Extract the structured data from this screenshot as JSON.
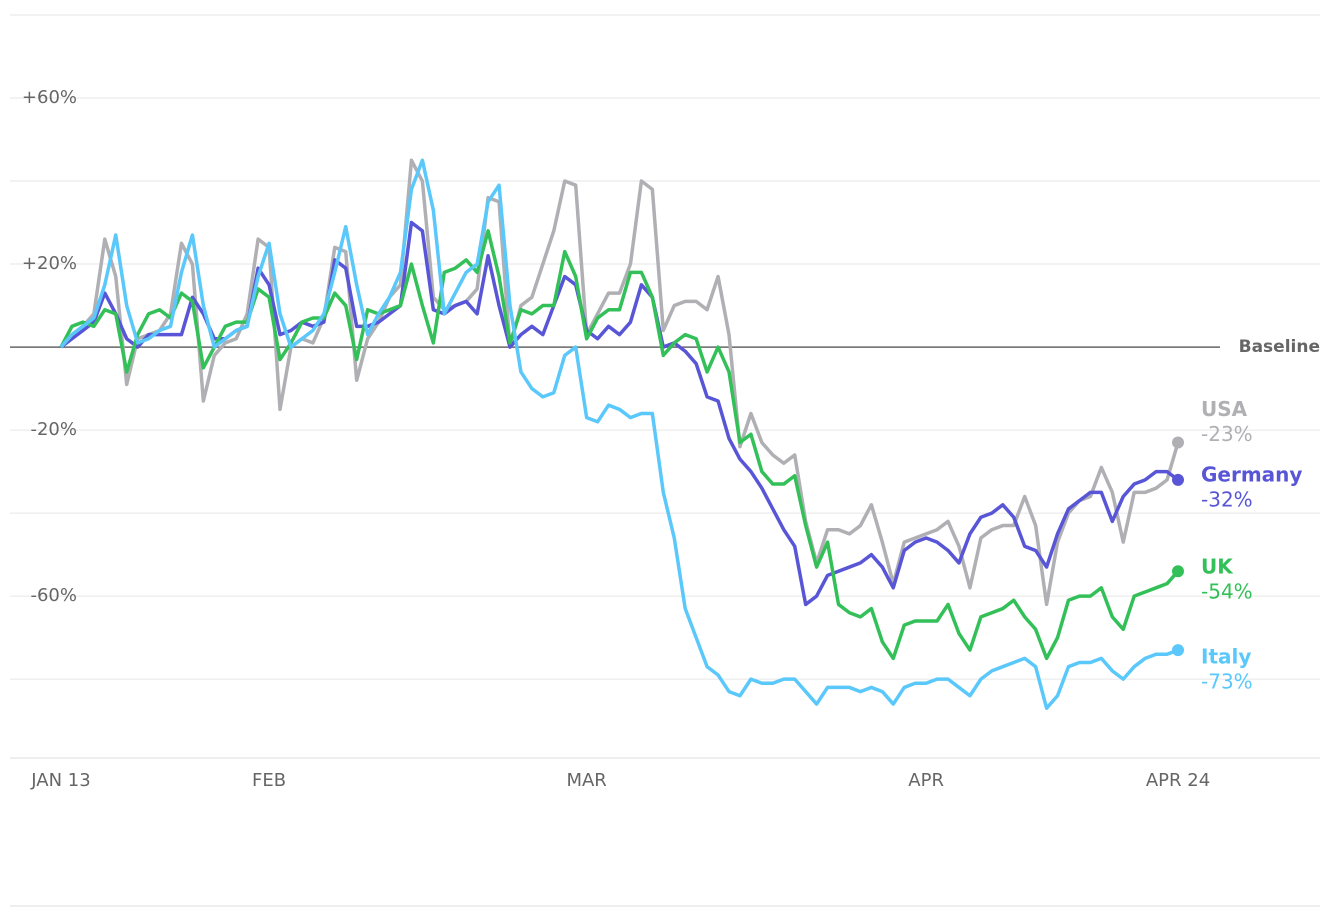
{
  "chart_data": {
    "type": "line",
    "xlim": [
      0,
      102
    ],
    "xticks": [
      {
        "value": 0,
        "label": "JAN 13"
      },
      {
        "value": 19,
        "label": "FEB"
      },
      {
        "value": 48,
        "label": "MAR"
      },
      {
        "value": 79,
        "label": "APR"
      },
      {
        "value": 102,
        "label": "APR 24"
      }
    ],
    "ylim": [
      -99,
      80
    ],
    "yticks": [
      {
        "value": 60,
        "label": "+60%"
      },
      {
        "value": 20,
        "label": "+20%"
      },
      {
        "value": -20,
        "label": "-20%"
      },
      {
        "value": -60,
        "label": "-60%"
      }
    ],
    "grid_lines": [
      80,
      40,
      -40,
      -80
    ],
    "baseline": 0,
    "baseline_label": "Baseline",
    "series": [
      {
        "name": "USA",
        "color": "#b0b0b4",
        "values": [
          0,
          3,
          5,
          8,
          26,
          17,
          -9,
          2,
          3,
          4,
          8,
          25,
          20,
          -13,
          -2,
          1,
          2,
          8,
          26,
          24,
          -15,
          0,
          2,
          1,
          7,
          24,
          23,
          -8,
          2,
          6,
          12,
          15,
          45,
          40,
          12,
          9,
          10,
          11,
          14,
          36,
          35,
          0,
          10,
          12,
          20,
          28,
          40,
          39,
          3,
          8,
          13,
          13,
          20,
          40,
          38,
          4,
          10,
          11,
          11,
          9,
          17,
          3,
          -24,
          -16,
          -23,
          -26,
          -28,
          -26,
          -42,
          -52,
          -44,
          -44,
          -45,
          -43,
          -38,
          -47,
          -57,
          -47,
          -46,
          -45,
          -44,
          -42,
          -48,
          -58,
          -46,
          -44,
          -43,
          -43,
          -36,
          -43,
          -62,
          -47,
          -40,
          -37,
          -36,
          -29,
          -35,
          -47,
          -35,
          -35,
          -34,
          -32,
          -23
        ],
        "value_labels": [
          null,
          null,
          null,
          null,
          null,
          null,
          null,
          null,
          null,
          null,
          null,
          null,
          null,
          null,
          null,
          null,
          null,
          null,
          null,
          null,
          null,
          null,
          null,
          null,
          null,
          null,
          null,
          null,
          null,
          null,
          null,
          null,
          null,
          null,
          null,
          null,
          null,
          null,
          null,
          null,
          null,
          null,
          null,
          null,
          null,
          null,
          null,
          null,
          null,
          null,
          null,
          null,
          null,
          null,
          null,
          null,
          null,
          null,
          null,
          null,
          null,
          null,
          null,
          null,
          null,
          null,
          null,
          null,
          null,
          null,
          null,
          null,
          null,
          null,
          null,
          null,
          null,
          null,
          null,
          null,
          null,
          null,
          null,
          null,
          null,
          null,
          null,
          null,
          null,
          null,
          null,
          null,
          null,
          null,
          null,
          null,
          null,
          null,
          null,
          null,
          null,
          null,
          "-23%"
        ]
      },
      {
        "name": "Germany",
        "color": "#5856d6",
        "values": [
          0,
          2,
          4,
          6,
          13,
          8,
          2,
          0,
          3,
          3,
          3,
          3,
          12,
          8,
          2,
          2,
          4,
          5,
          19,
          15,
          3,
          4,
          6,
          5,
          6,
          21,
          19,
          5,
          5,
          6,
          8,
          10,
          30,
          28,
          9,
          8,
          10,
          11,
          8,
          22,
          10,
          0,
          3,
          5,
          3,
          10,
          17,
          15,
          4,
          2,
          5,
          3,
          6,
          15,
          12,
          0,
          1,
          -1,
          -4,
          -12,
          -13,
          -22,
          -27,
          -30,
          -34,
          -39,
          -44,
          -48,
          -62,
          -60,
          -55,
          -54,
          -53,
          -52,
          -50,
          -53,
          -58,
          -49,
          -47,
          -46,
          -47,
          -49,
          -52,
          -45,
          -41,
          -40,
          -38,
          -41,
          -48,
          -49,
          -53,
          -45,
          -39,
          -37,
          -35,
          -35,
          -42,
          -36,
          -33,
          -32,
          -30,
          -30,
          -32
        ],
        "value_labels": [
          null,
          null,
          null,
          null,
          null,
          null,
          null,
          null,
          null,
          null,
          null,
          null,
          null,
          null,
          null,
          null,
          null,
          null,
          null,
          null,
          null,
          null,
          null,
          null,
          null,
          null,
          null,
          null,
          null,
          null,
          null,
          null,
          null,
          null,
          null,
          null,
          null,
          null,
          null,
          null,
          null,
          null,
          null,
          null,
          null,
          null,
          null,
          null,
          null,
          null,
          null,
          null,
          null,
          null,
          null,
          null,
          null,
          null,
          null,
          null,
          null,
          null,
          null,
          null,
          null,
          null,
          null,
          null,
          null,
          null,
          null,
          null,
          null,
          null,
          null,
          null,
          null,
          null,
          null,
          null,
          null,
          null,
          null,
          null,
          null,
          null,
          null,
          null,
          null,
          null,
          null,
          null,
          null,
          null,
          null,
          null,
          null,
          null,
          null,
          null,
          null,
          null,
          "-32%"
        ]
      },
      {
        "name": "UK",
        "color": "#34c058",
        "values": [
          0,
          5,
          6,
          5,
          9,
          8,
          -6,
          3,
          8,
          9,
          7,
          13,
          11,
          -5,
          0,
          5,
          6,
          6,
          14,
          12,
          -3,
          1,
          6,
          7,
          7,
          13,
          10,
          -3,
          9,
          8,
          9,
          10,
          20,
          10,
          1,
          18,
          19,
          21,
          18,
          28,
          17,
          1,
          9,
          8,
          10,
          10,
          23,
          17,
          2,
          7,
          9,
          9,
          18,
          18,
          12,
          -2,
          1,
          3,
          2,
          -6,
          0,
          -6,
          -23,
          -21,
          -30,
          -33,
          -33,
          -31,
          -43,
          -53,
          -47,
          -62,
          -64,
          -65,
          -63,
          -71,
          -75,
          -67,
          -66,
          -66,
          -66,
          -62,
          -69,
          -73,
          -65,
          -64,
          -63,
          -61,
          -65,
          -68,
          -75,
          -70,
          -61,
          -60,
          -60,
          -58,
          -65,
          -68,
          -60,
          -59,
          -58,
          -57,
          -54
        ],
        "value_labels": [
          null,
          null,
          null,
          null,
          null,
          null,
          null,
          null,
          null,
          null,
          null,
          null,
          null,
          null,
          null,
          null,
          null,
          null,
          null,
          null,
          null,
          null,
          null,
          null,
          null,
          null,
          null,
          null,
          null,
          null,
          null,
          null,
          null,
          null,
          null,
          null,
          null,
          null,
          null,
          null,
          null,
          null,
          null,
          null,
          null,
          null,
          null,
          null,
          null,
          null,
          null,
          null,
          null,
          null,
          null,
          null,
          null,
          null,
          null,
          null,
          null,
          null,
          null,
          null,
          null,
          null,
          null,
          null,
          null,
          null,
          null,
          null,
          null,
          null,
          null,
          null,
          null,
          null,
          null,
          null,
          null,
          null,
          null,
          null,
          null,
          null,
          null,
          null,
          null,
          null,
          null,
          null,
          null,
          null,
          null,
          null,
          null,
          null,
          null,
          null,
          null,
          null,
          "-54%"
        ]
      },
      {
        "name": "Italy",
        "color": "#5ac8fa",
        "values": [
          0,
          3,
          5,
          7,
          15,
          27,
          10,
          1,
          2,
          4,
          5,
          18,
          27,
          10,
          0,
          2,
          4,
          5,
          17,
          25,
          8,
          0,
          2,
          4,
          8,
          18,
          29,
          15,
          3,
          8,
          12,
          18,
          38,
          45,
          33,
          8,
          13,
          18,
          20,
          35,
          39,
          10,
          -6,
          -10,
          -12,
          -11,
          -2,
          0,
          -17,
          -18,
          -14,
          -15,
          -17,
          -16,
          -16,
          -35,
          -46,
          -63,
          -70,
          -77,
          -79,
          -83,
          -84,
          -80,
          -81,
          -81,
          -80,
          -80,
          -83,
          -86,
          -82,
          -82,
          -82,
          -83,
          -82,
          -83,
          -86,
          -82,
          -81,
          -81,
          -80,
          -80,
          -82,
          -84,
          -80,
          -78,
          -77,
          -76,
          -75,
          -77,
          -87,
          -84,
          -77,
          -76,
          -76,
          -75,
          -78,
          -80,
          -77,
          -75,
          -74,
          -74,
          -73
        ],
        "value_labels": [
          null,
          null,
          null,
          null,
          null,
          null,
          null,
          null,
          null,
          null,
          null,
          null,
          null,
          null,
          null,
          null,
          null,
          null,
          null,
          null,
          null,
          null,
          null,
          null,
          null,
          null,
          null,
          null,
          null,
          null,
          null,
          null,
          null,
          null,
          null,
          null,
          null,
          null,
          null,
          null,
          null,
          null,
          null,
          null,
          null,
          null,
          null,
          null,
          null,
          null,
          null,
          null,
          null,
          null,
          null,
          null,
          null,
          null,
          null,
          null,
          null,
          null,
          null,
          null,
          null,
          null,
          null,
          null,
          null,
          null,
          null,
          null,
          null,
          null,
          null,
          null,
          null,
          null,
          null,
          null,
          null,
          null,
          null,
          null,
          null,
          null,
          null,
          null,
          null,
          null,
          null,
          null,
          null,
          null,
          null,
          null,
          null,
          null,
          null,
          null,
          null,
          null,
          "-73%"
        ]
      }
    ]
  }
}
